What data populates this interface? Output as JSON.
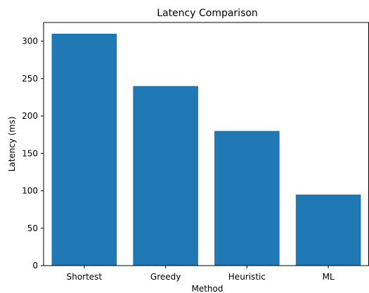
{
  "chart_data": {
    "type": "bar",
    "title": "Latency Comparison",
    "xlabel": "Method",
    "ylabel": "Latency (ms)",
    "categories": [
      "Shortest",
      "Greedy",
      "Heuristic",
      "ML"
    ],
    "values": [
      310,
      240,
      180,
      95
    ],
    "ylim": [
      0,
      325
    ],
    "yticks": [
      0,
      50,
      100,
      150,
      200,
      250,
      300
    ],
    "grid": false,
    "legend": "none",
    "bar_color": "#1f77b4"
  }
}
